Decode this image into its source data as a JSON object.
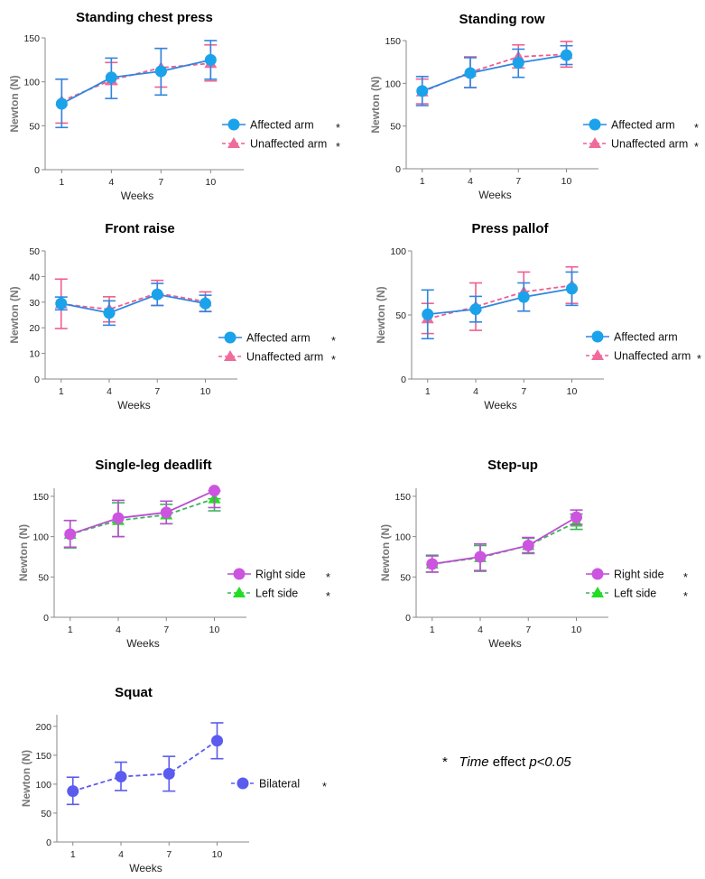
{
  "chart_data": [
    {
      "type": "line",
      "title": "Standing chest press",
      "xlabel": "Weeks",
      "ylabel": "Newton (N)",
      "categories": [
        "1",
        "4",
        "7",
        "10"
      ],
      "ylim": [
        0,
        150
      ],
      "yticks": [
        0,
        50,
        100,
        150
      ],
      "series": [
        {
          "name": "Affected arm",
          "marker": "circle",
          "dash": false,
          "color": "#1aa3ea",
          "bar_color": "#2f86e0",
          "star": "*",
          "values": [
            75,
            105,
            112,
            125
          ],
          "err_low": [
            48,
            81,
            85,
            103
          ],
          "err_high": [
            103,
            127,
            138,
            147
          ]
        },
        {
          "name": "Unaffected arm",
          "marker": "triangle",
          "dash": true,
          "color": "#f06b9c",
          "bar_color": "#ef5f8f",
          "star": "*",
          "values": [
            78,
            102,
            116,
            121
          ],
          "err_low": [
            53,
            97,
            94,
            101
          ],
          "err_high": [
            103,
            122,
            138,
            142
          ]
        }
      ]
    },
    {
      "type": "line",
      "title": "Standing row",
      "xlabel": "Weeks",
      "ylabel": "Newton (N)",
      "categories": [
        "1",
        "4",
        "7",
        "10"
      ],
      "ylim": [
        0,
        150
      ],
      "yticks": [
        0,
        50,
        100,
        150
      ],
      "series": [
        {
          "name": "Affected arm",
          "marker": "circle",
          "dash": false,
          "color": "#1aa3ea",
          "bar_color": "#2f86e0",
          "star": "*",
          "values": [
            91,
            112,
            124,
            133
          ],
          "err_low": [
            74,
            95,
            107,
            122
          ],
          "err_high": [
            108,
            130,
            140,
            144
          ]
        },
        {
          "name": "Unaffected arm",
          "marker": "triangle",
          "dash": true,
          "color": "#f06b9c",
          "bar_color": "#ef5f8f",
          "star": "*",
          "values": [
            90,
            113,
            131,
            134
          ],
          "err_low": [
            76,
            95,
            118,
            119
          ],
          "err_high": [
            105,
            131,
            145,
            149
          ]
        }
      ]
    },
    {
      "type": "line",
      "title": "Front raise",
      "xlabel": "Weeks",
      "ylabel": "Newton (N)",
      "categories": [
        "1",
        "4",
        "7",
        "10"
      ],
      "ylim": [
        0,
        50
      ],
      "yticks": [
        0,
        10,
        20,
        30,
        40,
        50
      ],
      "series": [
        {
          "name": "Affected arm",
          "marker": "circle",
          "dash": false,
          "color": "#1aa3ea",
          "bar_color": "#2f86e0",
          "star": "*",
          "values": [
            29.5,
            25.8,
            33,
            29.5
          ],
          "err_low": [
            27,
            21,
            28.7,
            26.3
          ],
          "err_high": [
            32,
            30.5,
            37.3,
            32.7
          ]
        },
        {
          "name": "Unaffected arm",
          "marker": "triangle",
          "dash": true,
          "color": "#f06b9c",
          "bar_color": "#ef5f8f",
          "star": "*",
          "values": [
            29.3,
            27.2,
            33.5,
            30.2
          ],
          "err_low": [
            19.7,
            22.3,
            28.7,
            26.4
          ],
          "err_high": [
            39,
            32.1,
            38.5,
            34
          ]
        }
      ]
    },
    {
      "type": "line",
      "title": "Press pallof",
      "xlabel": "Weeks",
      "ylabel": "Newton (N)",
      "categories": [
        "1",
        "4",
        "7",
        "10"
      ],
      "ylim": [
        0,
        100
      ],
      "yticks": [
        0,
        50,
        100
      ],
      "series": [
        {
          "name": "Affected arm",
          "marker": "circle",
          "dash": false,
          "color": "#1aa3ea",
          "bar_color": "#2f86e0",
          "star": "",
          "values": [
            50.5,
            54.5,
            64,
            70.5
          ],
          "err_low": [
            31.5,
            44.5,
            53,
            57.5
          ],
          "err_high": [
            69.5,
            64.5,
            75,
            83.5
          ]
        },
        {
          "name": "Unaffected arm",
          "marker": "triangle",
          "dash": true,
          "color": "#f06b9c",
          "bar_color": "#ef5f8f",
          "star": "*",
          "values": [
            47,
            56.5,
            68,
            73
          ],
          "err_low": [
            35.5,
            38,
            53,
            59
          ],
          "err_high": [
            59,
            75,
            83.5,
            87.5
          ]
        }
      ]
    },
    {
      "type": "line",
      "title": "Single-leg deadlift",
      "xlabel": "Weeks",
      "ylabel": "Newton (N)",
      "categories": [
        "1",
        "4",
        "7",
        "10"
      ],
      "ylim": [
        0,
        160
      ],
      "yticks": [
        0,
        50,
        100,
        150
      ],
      "series": [
        {
          "name": "Right side",
          "marker": "circle",
          "dash": false,
          "color": "#cc55e0",
          "bar_color": "#b94fcf",
          "star": "*",
          "values": [
            103,
            123,
            130,
            157
          ],
          "err_low": [
            87,
            100,
            116,
            136
          ],
          "err_high": [
            120,
            145,
            144,
            157
          ]
        },
        {
          "name": "Left side",
          "marker": "triangle",
          "dash": true,
          "color": "#22dd22",
          "bar_color": "#3cb45a",
          "star": "*",
          "values": [
            103,
            120,
            127,
            147
          ],
          "err_low": [
            86,
            100,
            116,
            132
          ],
          "err_high": [
            120,
            142,
            140,
            147
          ]
        }
      ]
    },
    {
      "type": "line",
      "title": "Step-up",
      "xlabel": "Weeks",
      "ylabel": "Newton (N)",
      "categories": [
        "1",
        "4",
        "7",
        "10"
      ],
      "ylim": [
        0,
        160
      ],
      "yticks": [
        0,
        50,
        100,
        150
      ],
      "series": [
        {
          "name": "Right side",
          "marker": "circle",
          "dash": false,
          "color": "#cc55e0",
          "bar_color": "#b94fcf",
          "star": "*",
          "values": [
            66,
            75,
            89,
            124
          ],
          "err_low": [
            56,
            58,
            80,
            115
          ],
          "err_high": [
            76,
            91,
            99,
            133
          ]
        },
        {
          "name": "Left side",
          "marker": "triangle",
          "dash": true,
          "color": "#22dd22",
          "bar_color": "#3cb45a",
          "star": "*",
          "values": [
            66,
            74,
            89,
            118
          ],
          "err_low": [
            56,
            57,
            79,
            109
          ],
          "err_high": [
            77,
            89,
            98,
            128
          ]
        }
      ]
    },
    {
      "type": "line",
      "title": "Squat",
      "xlabel": "Weeks",
      "ylabel": "Newton (N)",
      "categories": [
        "1",
        "4",
        "7",
        "10"
      ],
      "ylim": [
        0,
        220
      ],
      "yticks": [
        0,
        50,
        100,
        150,
        200
      ],
      "series": [
        {
          "name": "Bilateral",
          "marker": "circle",
          "dash": true,
          "color": "#5b5bf0",
          "bar_color": "#5b5bf0",
          "star": "*",
          "values": [
            88,
            113,
            118,
            175
          ],
          "err_low": [
            65,
            89,
            88,
            144
          ],
          "err_high": [
            112,
            138,
            148,
            206
          ]
        }
      ]
    }
  ],
  "note": {
    "star": "*",
    "italic": "Time",
    "text": " effect ",
    "p": "p<0.05"
  }
}
